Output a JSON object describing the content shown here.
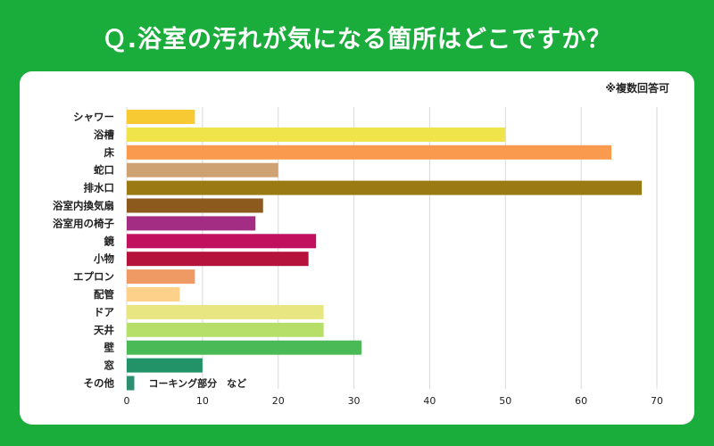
{
  "title": "Ｑ.浴室の汚れが気になる箇所はどこですか？",
  "note": "※複数回答可",
  "chart_data": {
    "type": "bar",
    "orientation": "horizontal",
    "title": "Ｑ.浴室の汚れが気になる箇所はどこですか？",
    "xlabel": "",
    "ylabel": "",
    "xlim": [
      0,
      70
    ],
    "xticks": [
      "0",
      "10",
      "20",
      "30",
      "40",
      "50",
      "60",
      "70"
    ],
    "grid": true,
    "categories": [
      "シャワー",
      "浴槽",
      "床",
      "蛇口",
      "排水口",
      "浴室内換気扇",
      "浴室用の椅子",
      "鏡",
      "小物",
      "エプロン",
      "配管",
      "ドア",
      "天井",
      "壁",
      "窓",
      "その他"
    ],
    "values": [
      9,
      50,
      64,
      20,
      68,
      18,
      17,
      25,
      24,
      9,
      7,
      26,
      26,
      31,
      10,
      1
    ],
    "colors": [
      "#f7c932",
      "#efe44a",
      "#fa9a4e",
      "#cfa273",
      "#9a7a12",
      "#8b5a1c",
      "#a42d84",
      "#c1105d",
      "#b5123c",
      "#ef9a64",
      "#fdd18a",
      "#e8e681",
      "#b6df6a",
      "#4aba56",
      "#229368",
      "#2e8f70"
    ],
    "annotation": "コーキング部分　など"
  }
}
